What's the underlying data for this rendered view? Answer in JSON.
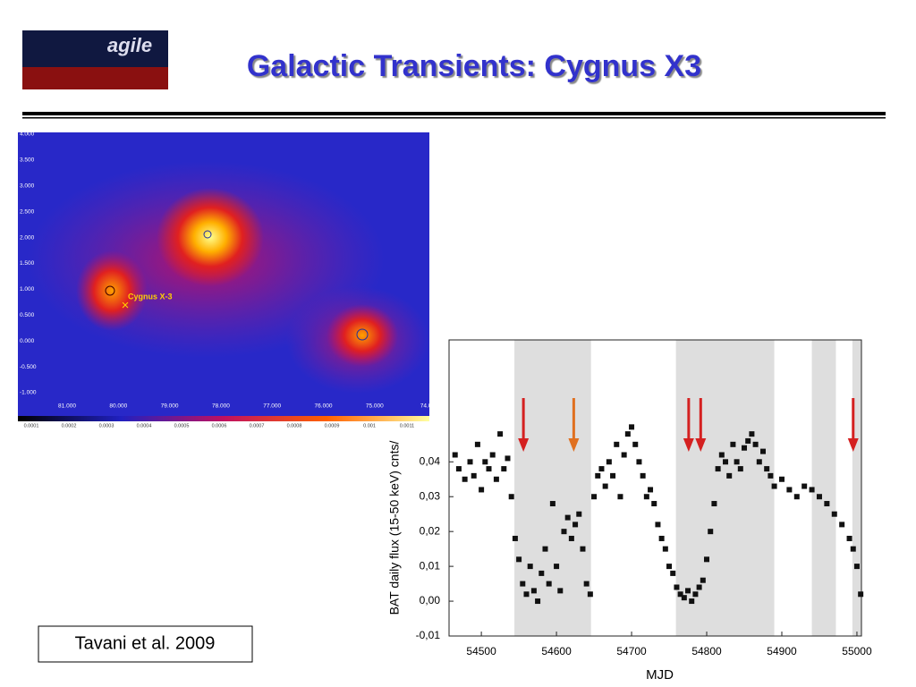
{
  "header": {
    "title": "Galactic Transients: Cygnus X3",
    "logo": "agile"
  },
  "citation": "Tavani et al. 2009",
  "skymap": {
    "label": "Cygnus X-3",
    "yticks": [
      "4.000",
      "3.500",
      "3.000",
      "2.500",
      "2.000",
      "1.500",
      "1.000",
      "0.500",
      "0.000",
      "-0.500",
      "-1.000"
    ],
    "xticks": [
      "81.000",
      "80.000",
      "79.000",
      "78.000",
      "77.000",
      "76.000",
      "75.000",
      "74.0"
    ],
    "colorbar": [
      "0.0001",
      "0.0002",
      "0.0003",
      "0.0004",
      "0.0005",
      "0.0006",
      "0.0007",
      "0.0008",
      "0.0009",
      "0.001",
      "0.0011"
    ]
  },
  "chart_data": {
    "type": "scatter",
    "xlabel": "MJD",
    "ylabel": "BAT daily flux (15-50 keV) cnts/",
    "xlim": [
      54457,
      55006
    ],
    "ylim": [
      -0.01,
      0.075
    ],
    "xticks": [
      54500,
      54600,
      54700,
      54800,
      54900,
      55000
    ],
    "yticks": [
      {
        "value": -0.01,
        "label": "-0,01"
      },
      {
        "value": 0,
        "label": "0,00"
      },
      {
        "value": 0.01,
        "label": "0,01"
      },
      {
        "value": 0.02,
        "label": "0,02"
      },
      {
        "value": 0.03,
        "label": "0,03"
      },
      {
        "value": 0.04,
        "label": "0,04"
      }
    ],
    "color": "#111111",
    "shaded_regions": [
      [
        54544,
        54646
      ],
      [
        54759,
        54890
      ],
      [
        54940,
        54972
      ],
      [
        54994,
        55006
      ]
    ],
    "arrows": [
      {
        "x": 54556,
        "color": "#d42020"
      },
      {
        "x": 54623,
        "color": "#e07020"
      },
      {
        "x": 54776,
        "color": "#d42020"
      },
      {
        "x": 54792,
        "color": "#d42020"
      },
      {
        "x": 54995,
        "color": "#d42020"
      }
    ],
    "x": [
      54465,
      54470,
      54478,
      54485,
      54490,
      54495,
      54500,
      54505,
      54510,
      54515,
      54520,
      54525,
      54530,
      54535,
      54540,
      54545,
      54550,
      54555,
      54560,
      54565,
      54570,
      54575,
      54580,
      54585,
      54590,
      54595,
      54600,
      54605,
      54610,
      54615,
      54620,
      54625,
      54630,
      54635,
      54640,
      54645,
      54650,
      54655,
      54660,
      54665,
      54670,
      54675,
      54680,
      54685,
      54690,
      54695,
      54700,
      54705,
      54710,
      54715,
      54720,
      54725,
      54730,
      54735,
      54740,
      54745,
      54750,
      54755,
      54760,
      54765,
      54770,
      54775,
      54780,
      54785,
      54790,
      54795,
      54800,
      54805,
      54810,
      54815,
      54820,
      54825,
      54830,
      54835,
      54840,
      54845,
      54850,
      54855,
      54860,
      54865,
      54870,
      54875,
      54880,
      54885,
      54890,
      54900,
      54910,
      54920,
      54930,
      54940,
      54950,
      54960,
      54970,
      54980,
      54990,
      54995,
      55000,
      55005
    ],
    "values": [
      0.042,
      0.038,
      0.035,
      0.04,
      0.036,
      0.045,
      0.032,
      0.04,
      0.038,
      0.042,
      0.035,
      0.048,
      0.038,
      0.041,
      0.03,
      0.018,
      0.012,
      0.005,
      0.002,
      0.01,
      0.003,
      0.0,
      0.008,
      0.015,
      0.005,
      0.028,
      0.01,
      0.003,
      0.02,
      0.024,
      0.018,
      0.022,
      0.025,
      0.015,
      0.005,
      0.002,
      0.03,
      0.036,
      0.038,
      0.033,
      0.04,
      0.036,
      0.045,
      0.03,
      0.042,
      0.048,
      0.05,
      0.045,
      0.04,
      0.036,
      0.03,
      0.032,
      0.028,
      0.022,
      0.018,
      0.015,
      0.01,
      0.008,
      0.004,
      0.002,
      0.001,
      0.003,
      0.0,
      0.002,
      0.004,
      0.006,
      0.012,
      0.02,
      0.028,
      0.038,
      0.042,
      0.04,
      0.036,
      0.045,
      0.04,
      0.038,
      0.044,
      0.046,
      0.048,
      0.045,
      0.04,
      0.043,
      0.038,
      0.036,
      0.033,
      0.035,
      0.032,
      0.03,
      0.033,
      0.032,
      0.03,
      0.028,
      0.025,
      0.022,
      0.018,
      0.015,
      0.01,
      0.002
    ]
  }
}
